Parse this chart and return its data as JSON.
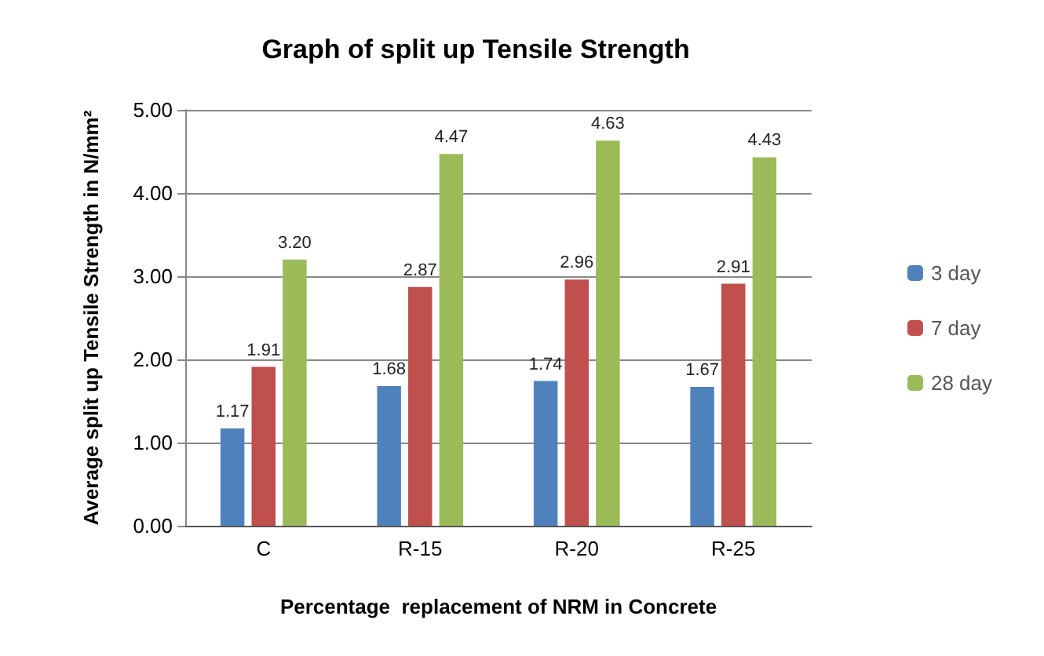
{
  "chart_data": {
    "type": "bar",
    "title": "Graph of split up Tensile Strength",
    "xlabel": "Percentage  replacement of NRM in Concrete",
    "ylabel": "Average split up Tensile Strength in N/mm²",
    "categories": [
      "C",
      "R-15",
      "R-20",
      "R-25"
    ],
    "series": [
      {
        "name": "3 day",
        "color": "#4f81bd",
        "values": [
          1.17,
          1.68,
          1.74,
          1.67
        ],
        "value_labels": [
          "1.17",
          "1.68",
          "1.74",
          "1.67"
        ]
      },
      {
        "name": "7 day",
        "color": "#c0504d",
        "values": [
          1.91,
          2.87,
          2.96,
          2.91
        ],
        "value_labels": [
          "1.91",
          "2.87",
          "2.96",
          "2.91"
        ]
      },
      {
        "name": "28 day",
        "color": "#9bbb59",
        "values": [
          3.2,
          4.47,
          4.63,
          4.43
        ],
        "value_labels": [
          "3.20",
          "4.47",
          "4.63",
          "4.43"
        ]
      }
    ],
    "ylim": [
      0,
      5
    ],
    "yticks": [
      {
        "value": 0,
        "label": "0.00"
      },
      {
        "value": 1,
        "label": "1.00"
      },
      {
        "value": 2,
        "label": "2.00"
      },
      {
        "value": 3,
        "label": "3.00"
      },
      {
        "value": 4,
        "label": "4.00"
      },
      {
        "value": 5,
        "label": "5.00"
      }
    ],
    "grid": "y",
    "legend": "right"
  }
}
